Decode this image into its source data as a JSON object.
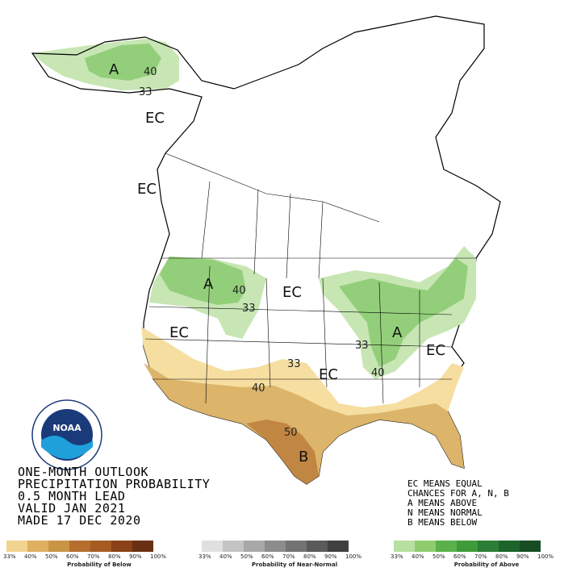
{
  "map": {
    "region_labels": [
      "A",
      "EC",
      "EC",
      "A",
      "EC",
      "EC",
      "A",
      "EC",
      "EC",
      "B"
    ],
    "contour_labels": [
      "40",
      "33",
      "40",
      "33",
      "33",
      "33",
      "40",
      "40",
      "50"
    ],
    "colors": {
      "above_33": "#c7e6b4",
      "above_40": "#93cf7a",
      "below_33": "#f5dea0",
      "below_40": "#dcb46a",
      "below_50": "#c28643",
      "land": "#ffffff",
      "outline": "#000000"
    }
  },
  "title": {
    "line1": "ONE-MONTH OUTLOOK",
    "line2": "PRECIPITATION PROBABILITY",
    "line3": "0.5 MONTH LEAD",
    "line4": "VALID JAN 2021",
    "line5": "MADE 17 DEC 2020"
  },
  "notes": {
    "line1": "EC MEANS EQUAL",
    "line2": "CHANCES FOR A, N, B",
    "line3": "A MEANS ABOVE",
    "line4": "N MEANS NORMAL",
    "line5": "B MEANS BELOW"
  },
  "logo": {
    "text": "NOAA",
    "name": "noaa-logo"
  },
  "legend": {
    "below": {
      "caption": "Probability of Below",
      "ticks": [
        "33%",
        "40%",
        "50%",
        "60%",
        "70%",
        "80%",
        "90%",
        "100%"
      ],
      "colors": [
        "#f2d48f",
        "#deb060",
        "#c99544",
        "#b56e2d",
        "#a65b22",
        "#8a4216",
        "#693013"
      ]
    },
    "normal": {
      "caption": "Probability of Near-Normal",
      "ticks": [
        "33%",
        "40%",
        "50%",
        "60%",
        "70%",
        "80%",
        "90%",
        "100%"
      ],
      "colors": [
        "#e0e0e0",
        "#c4c4c4",
        "#a8a8a8",
        "#8c8c8c",
        "#737373",
        "#5a5a5a",
        "#404040"
      ]
    },
    "above": {
      "caption": "Probability of Above",
      "ticks": [
        "33%",
        "40%",
        "50%",
        "60%",
        "70%",
        "80%",
        "90%",
        "100%"
      ],
      "colors": [
        "#b7e0a0",
        "#8fcc70",
        "#5ab14b",
        "#3f9a3a",
        "#2b7e35",
        "#1d642a",
        "#184d24"
      ]
    }
  }
}
